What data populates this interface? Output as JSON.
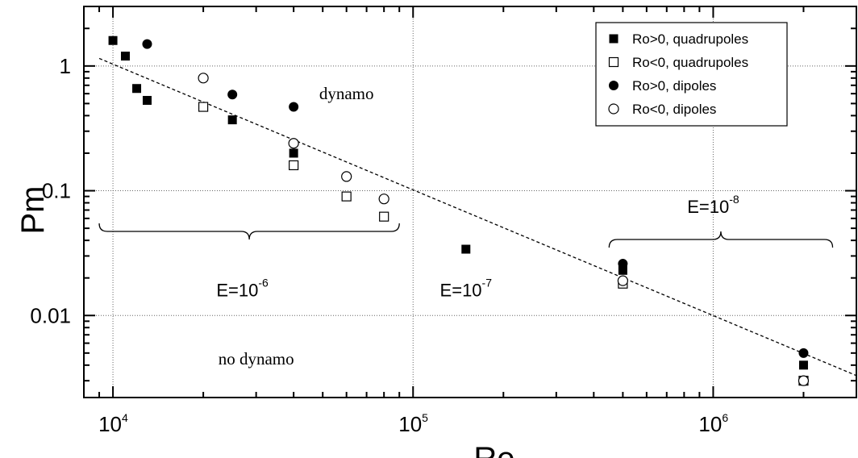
{
  "chart_data": {
    "type": "scatter",
    "xscale": "log",
    "yscale": "log",
    "xlim": [
      8000,
      3000000
    ],
    "ylim": [
      0.0022,
      3
    ],
    "grid": true,
    "xlabel": "Re",
    "ylabel": "Pm",
    "legend_position": "top-right",
    "x_ticks": [
      {
        "value": 10000,
        "base": "10",
        "exp": "4"
      },
      {
        "value": 100000,
        "base": "10",
        "exp": "5"
      },
      {
        "value": 1000000,
        "base": "10",
        "exp": "6"
      }
    ],
    "y_ticks": [
      {
        "value": 1,
        "label": "1"
      },
      {
        "value": 0.1,
        "label": "0.1"
      },
      {
        "value": 0.01,
        "label": "0.01"
      }
    ],
    "series": [
      {
        "name": "Ro>0, quadrupoles",
        "marker": "filled-square",
        "points": [
          [
            10000,
            1.6
          ],
          [
            11000,
            1.2
          ],
          [
            12000,
            0.66
          ],
          [
            13000,
            0.53
          ],
          [
            25000,
            0.37
          ],
          [
            40000,
            0.2
          ],
          [
            150000,
            0.034
          ],
          [
            500000,
            0.023
          ],
          [
            2000000,
            0.004
          ]
        ]
      },
      {
        "name": "Ro<0, quadrupoles",
        "marker": "open-square",
        "points": [
          [
            20000,
            0.47
          ],
          [
            40000,
            0.16
          ],
          [
            60000,
            0.09
          ],
          [
            80000,
            0.062
          ],
          [
            500000,
            0.018
          ],
          [
            2000000,
            0.003
          ]
        ]
      },
      {
        "name": "Ro>0, dipoles",
        "marker": "filled-circle",
        "points": [
          [
            13000,
            1.5
          ],
          [
            25000,
            0.59
          ],
          [
            40000,
            0.47
          ],
          [
            500000,
            0.026
          ],
          [
            2000000,
            0.005
          ]
        ]
      },
      {
        "name": "Ro<0, dipoles",
        "marker": "open-circle",
        "points": [
          [
            20000,
            0.8
          ],
          [
            40000,
            0.24
          ],
          [
            60000,
            0.13
          ],
          [
            80000,
            0.086
          ],
          [
            500000,
            0.019
          ],
          [
            2000000,
            0.003
          ]
        ]
      }
    ],
    "trend_line": {
      "style": "dashed",
      "from": [
        9000,
        1.15
      ],
      "to": [
        3000000,
        0.0033
      ]
    },
    "annotations": [
      {
        "text": "dynamo",
        "x": 60000,
        "y": 0.6,
        "font": "serif"
      },
      {
        "text": "no dynamo",
        "x": 30000,
        "y": 0.0045,
        "font": "serif"
      }
    ],
    "braces": [
      {
        "x_from": 9000,
        "x_to": 90000,
        "label_base": "E=10",
        "label_exp": "-6",
        "label_x": 27000,
        "label_y": 0.016
      },
      {
        "label_base": "E=10",
        "label_exp": "-7",
        "label_x": 150000,
        "label_y": 0.016
      },
      {
        "x_from": 450000,
        "x_to": 2500000,
        "label_base": "E=10",
        "label_exp": "-8",
        "label_x": 1000000,
        "label_y": 0.075
      }
    ]
  }
}
